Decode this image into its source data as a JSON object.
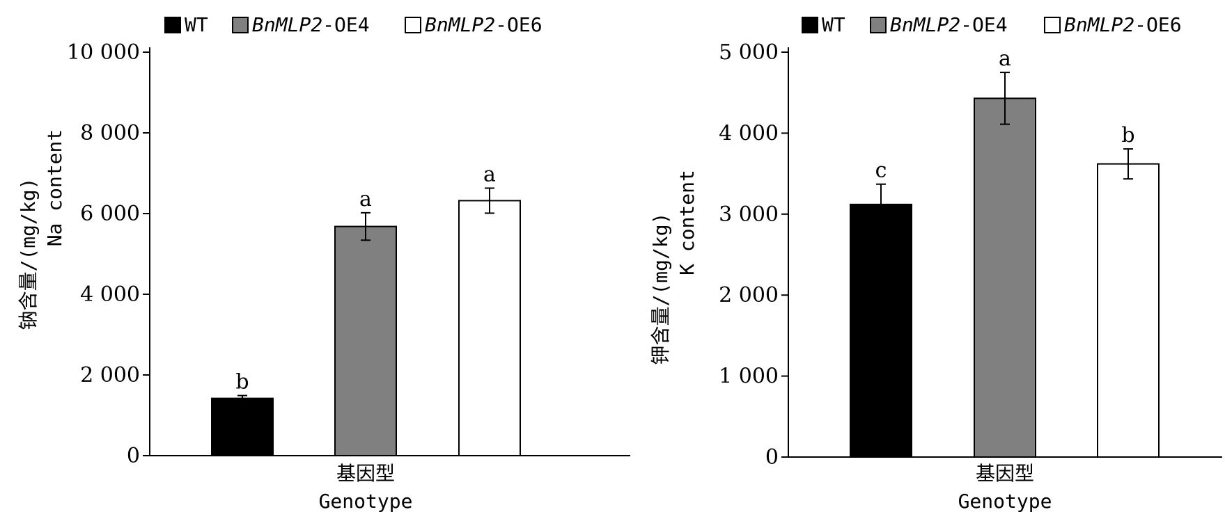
{
  "legend": {
    "items": [
      {
        "name_plain": "WT",
        "name_italic": "",
        "color": "#000000"
      },
      {
        "name_italic": "BnMLP2",
        "name_plain": "-OE4",
        "color": "#808080"
      },
      {
        "name_italic": "BnMLP2",
        "name_plain": "-OE6",
        "color": "#ffffff"
      }
    ]
  },
  "chart_data": [
    {
      "type": "bar",
      "categories": [
        "WT",
        "BnMLP2-OE4",
        "BnMLP2-OE6"
      ],
      "values": [
        1420,
        5680,
        6320
      ],
      "errors": [
        70,
        340,
        310
      ],
      "significance": [
        "b",
        "a",
        "a"
      ],
      "colors": [
        "#000000",
        "#808080",
        "#ffffff"
      ],
      "ylabel_cn": "钠含量/(mg/kg)",
      "ylabel_en": "Na content",
      "xlabel_cn": "基因型",
      "xlabel_en": "Genotype",
      "ylim": [
        0,
        10000
      ],
      "yticks": [
        0,
        2000,
        4000,
        6000,
        8000,
        10000
      ],
      "ytick_labels": [
        "0",
        "2 000",
        "4 000",
        "6 000",
        "8 000",
        "10 000"
      ],
      "legend_position": "top"
    },
    {
      "type": "bar",
      "categories": [
        "WT",
        "BnMLP2-OE4",
        "BnMLP2-OE6"
      ],
      "values": [
        3120,
        4430,
        3620
      ],
      "errors": [
        250,
        320,
        185
      ],
      "significance": [
        "c",
        "a",
        "b"
      ],
      "colors": [
        "#000000",
        "#808080",
        "#ffffff"
      ],
      "ylabel_cn": "钾含量/(mg/kg)",
      "ylabel_en": "K content",
      "xlabel_cn": "基因型",
      "xlabel_en": "Genotype",
      "ylim": [
        0,
        5000
      ],
      "yticks": [
        0,
        1000,
        2000,
        3000,
        4000,
        5000
      ],
      "ytick_labels": [
        "0",
        "1 000",
        "2 000",
        "3 000",
        "4 000",
        "5 000"
      ],
      "legend_position": "top"
    }
  ]
}
